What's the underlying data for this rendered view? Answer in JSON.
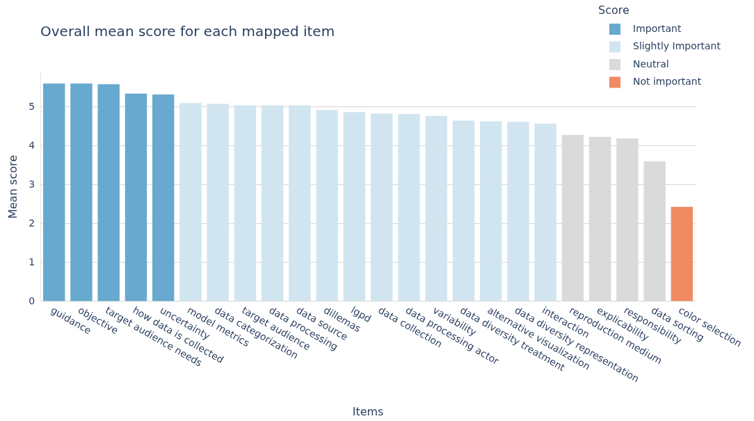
{
  "chart_data": {
    "type": "bar",
    "title": "Overall mean score for each mapped item",
    "xlabel": "Items",
    "ylabel": "Mean score",
    "legend_title": "Score",
    "categories": [
      "guidance",
      "objective",
      "target audience needs",
      "how data is collected",
      "uncertainty",
      "model metrics",
      "data categorization",
      "target audience",
      "data processing",
      "data source",
      "dillemas",
      "lgpd",
      "data collection",
      "data processing actor",
      "variability",
      "data diversity treatment",
      "alternative visualization",
      "data diversity representation",
      "interaction",
      "reproduction medium",
      "explicability",
      "responsibility",
      "data sorting",
      "color selection"
    ],
    "series": [
      {
        "name": "Important",
        "color": "#67a9cf",
        "values": [
          5.6,
          5.6,
          5.58,
          5.34,
          5.32,
          null,
          null,
          null,
          null,
          null,
          null,
          null,
          null,
          null,
          null,
          null,
          null,
          null,
          null,
          null,
          null,
          null,
          null,
          null
        ]
      },
      {
        "name": "Slightly Important",
        "color": "#d1e5f0",
        "values": [
          null,
          null,
          null,
          null,
          null,
          5.1,
          5.08,
          5.04,
          5.04,
          5.04,
          4.92,
          4.87,
          4.83,
          4.82,
          4.77,
          4.65,
          4.63,
          4.62,
          4.57,
          null,
          null,
          null,
          null,
          null
        ]
      },
      {
        "name": "Neutral",
        "color": "#dadada",
        "values": [
          null,
          null,
          null,
          null,
          null,
          null,
          null,
          null,
          null,
          null,
          null,
          null,
          null,
          null,
          null,
          null,
          null,
          null,
          null,
          4.28,
          4.23,
          4.19,
          3.6,
          null
        ]
      },
      {
        "name": "Not important",
        "color": "#ef8a62",
        "values": [
          null,
          null,
          null,
          null,
          null,
          null,
          null,
          null,
          null,
          null,
          null,
          null,
          null,
          null,
          null,
          null,
          null,
          null,
          null,
          null,
          null,
          null,
          null,
          2.43
        ]
      }
    ],
    "stacked": true,
    "ylim": [
      0,
      5.89
    ],
    "yticks": [
      0,
      1,
      2,
      3,
      4,
      5
    ],
    "grid": "y",
    "legend": "top right"
  }
}
